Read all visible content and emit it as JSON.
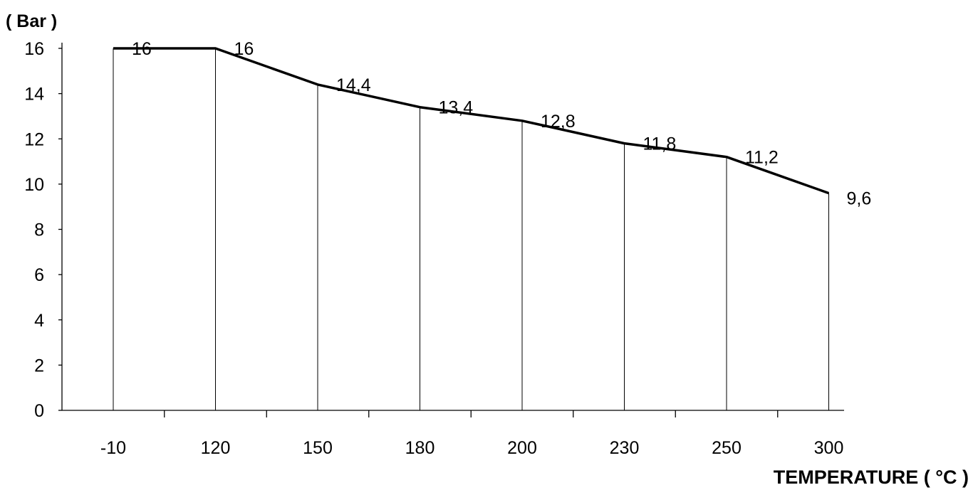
{
  "chart_data": {
    "type": "line",
    "categories": [
      "-10",
      "120",
      "150",
      "180",
      "200",
      "230",
      "250",
      "300"
    ],
    "values": [
      16,
      16,
      14.4,
      13.4,
      12.8,
      11.8,
      11.2,
      9.6
    ],
    "data_labels": [
      "16",
      "16",
      "14,4",
      "13,4",
      "12,8",
      "11,8",
      "11,2",
      "9,6"
    ],
    "ylabel": "( Bar )",
    "xlabel": "TEMPERATURE ( °C )",
    "ylim": [
      0,
      16
    ],
    "yticks": [
      0,
      2,
      4,
      6,
      8,
      10,
      12,
      14,
      16
    ],
    "drop_lines": true,
    "grid": false,
    "legend": "none"
  }
}
